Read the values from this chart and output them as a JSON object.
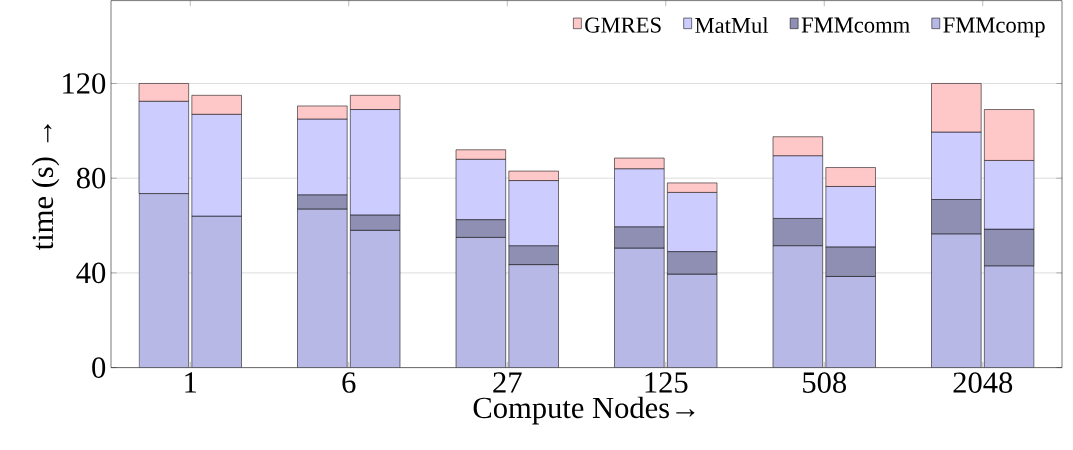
{
  "chart_data": {
    "type": "bar",
    "stacked": true,
    "categories": [
      null,
      "1",
      null,
      null,
      null,
      null,
      null,
      "6",
      null,
      null,
      null,
      null,
      null,
      "27",
      null,
      null,
      null,
      null,
      null,
      "125",
      null,
      null,
      null,
      null,
      null,
      "508",
      null,
      null,
      null,
      null,
      null,
      "2048",
      null
    ],
    "ylim": [
      0,
      155
    ],
    "yticks": [
      0,
      40,
      80,
      120
    ],
    "xlabel": "Compute Nodes→",
    "ylabel": "time (s) →",
    "grid": "y",
    "legend": "top right",
    "series": [
      {
        "name": "FMMcomp",
        "color": "#b8b8e6",
        "values": [
          73.5,
          null,
          64,
          null,
          null,
          null,
          67,
          null,
          58,
          null,
          null,
          null,
          55,
          null,
          43.5,
          null,
          null,
          null,
          50.5,
          null,
          39.5,
          null,
          null,
          null,
          51.5,
          null,
          38.5,
          null,
          null,
          null,
          56.5,
          null,
          43
        ]
      },
      {
        "name": "FMMcomm",
        "color": "#8f8fb3",
        "values": [
          0,
          null,
          0,
          null,
          null,
          null,
          6,
          null,
          6.5,
          null,
          null,
          null,
          7.5,
          null,
          8,
          null,
          null,
          null,
          9,
          null,
          9.5,
          null,
          null,
          null,
          11.5,
          null,
          12.5,
          null,
          null,
          null,
          14.5,
          null,
          15.5
        ]
      },
      {
        "name": "MatMul",
        "color": "#ccccff",
        "values": [
          39,
          null,
          43,
          null,
          null,
          null,
          32,
          null,
          44.5,
          null,
          null,
          null,
          25.5,
          null,
          27.5,
          null,
          null,
          null,
          24.5,
          null,
          25,
          null,
          null,
          null,
          26.5,
          null,
          25.5,
          null,
          null,
          null,
          28.5,
          null,
          29
        ]
      },
      {
        "name": "GMRES",
        "color": "#ffc8c8",
        "values": [
          7.5,
          null,
          8,
          null,
          null,
          null,
          5.5,
          null,
          6,
          null,
          null,
          null,
          4,
          null,
          4,
          null,
          null,
          null,
          4.5,
          null,
          4,
          null,
          null,
          null,
          8,
          null,
          8,
          null,
          null,
          null,
          20.5,
          null,
          21.5
        ]
      }
    ]
  }
}
